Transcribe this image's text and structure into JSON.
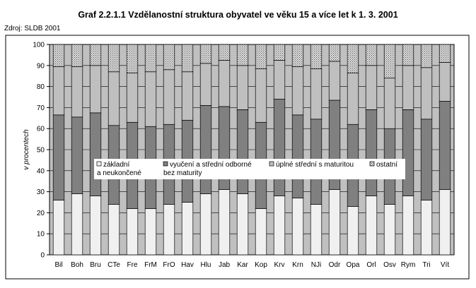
{
  "title": "Graf 2.2.1.1 Vzdělanostní struktura obyvatel ve věku 15 a více let k 1. 3. 2001",
  "source": "Zdroj: SLDB 2001",
  "chart_data": {
    "type": "bar",
    "stacked": true,
    "ylabel": "v procentech",
    "ylim": [
      0,
      100
    ],
    "yticks": [
      0,
      10,
      20,
      30,
      40,
      50,
      60,
      70,
      80,
      90,
      100
    ],
    "grid": true,
    "legend_position": "inside-middle",
    "categories": [
      "Bil",
      "Boh",
      "Bru",
      "CTe",
      "Fre",
      "FrM",
      "FrO",
      "Hav",
      "Hlu",
      "Jab",
      "Kar",
      "Kop",
      "Krv",
      "Krn",
      "NJi",
      "Odr",
      "Opa",
      "Orl",
      "Osv",
      "Rym",
      "Tri",
      "Vít"
    ],
    "series": [
      {
        "name": "základní a neukončené",
        "color": "#f0f0f0",
        "values": [
          26,
          29,
          28,
          24,
          22,
          22,
          24,
          25,
          29,
          31,
          29,
          22,
          28,
          27,
          24,
          31,
          23,
          28,
          24,
          28,
          26,
          31
        ]
      },
      {
        "name": "vyučení a střední odborné bez maturity",
        "color": "#808080",
        "values": [
          40.5,
          36.5,
          39.5,
          37.5,
          41,
          39,
          38,
          39,
          42,
          39.5,
          40,
          41,
          46,
          39.5,
          40.5,
          42.5,
          39,
          41,
          36,
          41,
          38.5,
          42
        ]
      },
      {
        "name": "úplné střední s maturitou",
        "color": "#bfbfbf",
        "values": [
          23,
          24,
          22.5,
          25.5,
          23.5,
          26,
          26,
          23,
          20,
          22,
          21,
          25.5,
          18.5,
          23,
          24,
          18.5,
          24.5,
          21,
          24,
          21,
          24.5,
          18.5
        ]
      },
      {
        "name": "ostatní",
        "color": "#c8c8c8",
        "pattern": "dots",
        "values": [
          10.5,
          10.5,
          10,
          13,
          13.5,
          13,
          12,
          13,
          9,
          7.5,
          10,
          11.5,
          7.5,
          10.5,
          11.5,
          8,
          13.5,
          10,
          16,
          10,
          11,
          8.5
        ]
      }
    ]
  }
}
